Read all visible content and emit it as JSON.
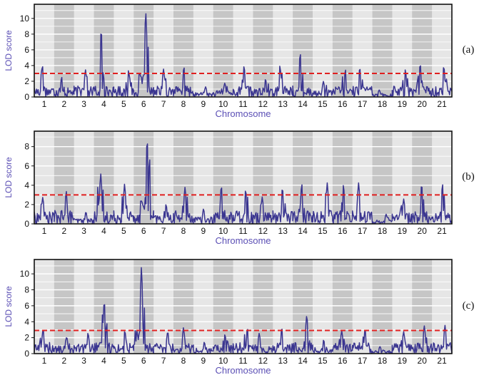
{
  "colors": {
    "band_light": "#e6e6e6",
    "band_dark": "#c6c6c6",
    "grid": "#ffffff",
    "line": "#3a3590",
    "threshold": "#e02020",
    "axis_text": "#5b4fb5"
  },
  "chart_data": [
    {
      "type": "line",
      "panel_label": "(a)",
      "xlabel": "Chromosome",
      "ylabel": "LOD score",
      "categories": [
        "1",
        "2",
        "3",
        "4",
        "5",
        "6",
        "7",
        "8",
        "9",
        "10",
        "11",
        "12",
        "13",
        "14",
        "15",
        "16",
        "17",
        "18",
        "19",
        "20",
        "21"
      ],
      "ylim": [
        0,
        11.8
      ],
      "yticks": [
        0,
        2,
        4,
        6,
        8,
        10
      ],
      "threshold": 3.0,
      "grid": true,
      "peaks": [
        [
          1,
          4.2
        ],
        [
          2,
          2.6
        ],
        [
          3,
          3.5
        ],
        [
          4,
          9.0
        ],
        [
          5,
          3.5
        ],
        [
          6,
          11.3
        ],
        [
          7,
          3.6
        ],
        [
          8,
          4.0
        ],
        [
          9,
          1.3
        ],
        [
          10,
          1.8
        ],
        [
          11,
          4.1
        ],
        [
          12,
          2.4
        ],
        [
          13,
          4.1
        ],
        [
          14,
          5.8
        ],
        [
          15,
          2.0
        ],
        [
          16,
          3.6
        ],
        [
          17,
          3.9
        ],
        [
          18,
          0.9
        ],
        [
          19,
          3.6
        ],
        [
          20,
          4.4
        ],
        [
          21,
          4.1
        ]
      ]
    },
    {
      "type": "line",
      "panel_label": "(b)",
      "xlabel": "Chromosome",
      "ylabel": "LOD score",
      "categories": [
        "1",
        "2",
        "3",
        "4",
        "5",
        "6",
        "7",
        "8",
        "9",
        "10",
        "11",
        "12",
        "13",
        "14",
        "15",
        "16",
        "17",
        "18",
        "19",
        "20",
        "21"
      ],
      "ylim": [
        0,
        9.6
      ],
      "yticks": [
        0,
        2,
        4,
        6,
        8
      ],
      "threshold": 3.0,
      "grid": true,
      "peaks": [
        [
          1,
          2.8
        ],
        [
          2,
          3.5
        ],
        [
          3,
          1.3
        ],
        [
          4,
          5.3
        ],
        [
          5,
          4.2
        ],
        [
          6,
          9.2
        ],
        [
          7,
          2.1
        ],
        [
          8,
          3.9
        ],
        [
          9,
          1.6
        ],
        [
          10,
          4.1
        ],
        [
          11,
          3.7
        ],
        [
          12,
          2.8
        ],
        [
          13,
          3.9
        ],
        [
          14,
          4.3
        ],
        [
          15,
          4.3
        ],
        [
          16,
          4.2
        ],
        [
          17,
          4.3
        ],
        [
          18,
          1.0
        ],
        [
          19,
          2.6
        ],
        [
          20,
          4.3
        ],
        [
          21,
          4.3
        ]
      ]
    },
    {
      "type": "line",
      "panel_label": "(c)",
      "xlabel": "Chromosome",
      "ylabel": "LOD score",
      "categories": [
        "1",
        "2",
        "3",
        "4",
        "5",
        "6",
        "7",
        "8",
        "9",
        "10",
        "11",
        "12",
        "13",
        "14",
        "15",
        "16",
        "17",
        "18",
        "19",
        "20",
        "21"
      ],
      "ylim": [
        0,
        11.8
      ],
      "yticks": [
        0,
        2,
        4,
        6,
        8,
        10
      ],
      "threshold": 2.9,
      "grid": true,
      "peaks": [
        [
          1,
          3.2
        ],
        [
          2,
          2.2
        ],
        [
          3,
          2.7
        ],
        [
          4,
          6.9
        ],
        [
          5,
          3.0
        ],
        [
          6,
          11.1
        ],
        [
          7,
          2.9
        ],
        [
          8,
          3.3
        ],
        [
          9,
          1.5
        ],
        [
          10,
          2.5
        ],
        [
          11,
          3.3
        ],
        [
          12,
          2.6
        ],
        [
          13,
          3.4
        ],
        [
          14,
          5.0
        ],
        [
          15,
          1.8
        ],
        [
          16,
          2.9
        ],
        [
          17,
          3.2
        ],
        [
          18,
          0.9
        ],
        [
          19,
          2.8
        ],
        [
          20,
          3.6
        ],
        [
          21,
          3.6
        ]
      ]
    }
  ]
}
